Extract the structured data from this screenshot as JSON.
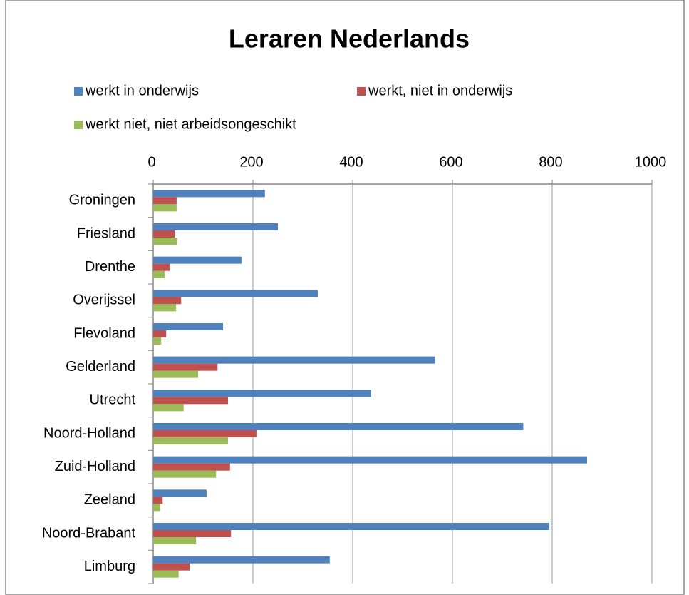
{
  "chart_data": {
    "type": "bar",
    "orientation": "horizontal",
    "title": "Leraren Nederlands",
    "categories": [
      "Groningen",
      "Friesland",
      "Drenthe",
      "Overijssel",
      "Flevoland",
      "Gelderland",
      "Utrecht",
      "Noord-Holland",
      "Zuid-Holland",
      "Zeeland",
      "Noord-Brabant",
      "Limburg"
    ],
    "series": [
      {
        "name": "werkt in onderwijs",
        "color": "#4f81bd",
        "values": [
          224,
          250,
          177,
          330,
          140,
          565,
          437,
          742,
          870,
          107,
          794,
          354
        ]
      },
      {
        "name": "werkt, niet in onderwijs",
        "color": "#c0504d",
        "values": [
          47,
          43,
          33,
          56,
          26,
          129,
          150,
          207,
          154,
          19,
          156,
          73
        ]
      },
      {
        "name": "werkt niet, niet arbeidsongeschikt",
        "color": "#9bbb59",
        "values": [
          47,
          48,
          23,
          46,
          16,
          90,
          61,
          150,
          126,
          14,
          86,
          51
        ]
      }
    ],
    "xlim": [
      0,
      1000
    ],
    "xticks": [
      0,
      200,
      400,
      600,
      800,
      1000
    ],
    "grid": true,
    "legend": "top"
  }
}
